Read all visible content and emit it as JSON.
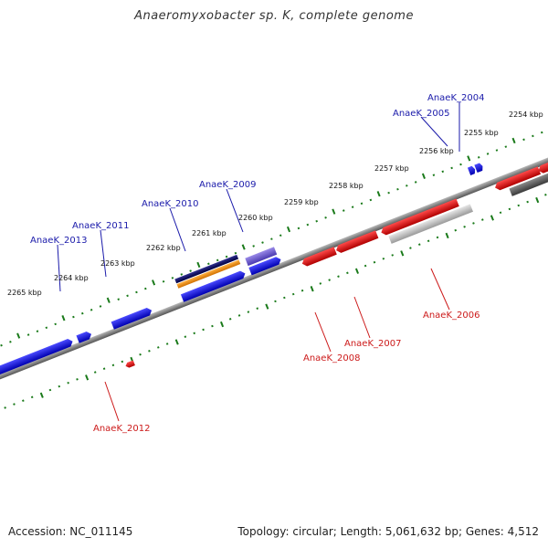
{
  "title": "Anaeromyxobacter sp. K, complete genome",
  "footer": {
    "accession": "Accession: NC_011145",
    "summary": "Topology: circular; Length: 5,061,632 bp; Genes: 4,512"
  },
  "colors": {
    "forward_gene": "#1010e0",
    "reverse_gene": "#e01010",
    "pseudo_gene": "#c0c0c0",
    "dark_gene": "#5a5a5a",
    "purple_gene": "#6a5acd",
    "navy_gene": "#101060",
    "orange_gene": "#f0901a",
    "tick": "#1a7a1a",
    "backbone": "#808080",
    "forward_label": "#1a1aaa",
    "reverse_label": "#cc1a1a"
  },
  "scale_ticks": [
    "2254 kbp",
    "2255 kbp",
    "2256 kbp",
    "2257 kbp",
    "2258 kbp",
    "2259 kbp",
    "2260 kbp",
    "2261 kbp",
    "2262 kbp",
    "2263 kbp",
    "2264 kbp",
    "2265 kbp"
  ],
  "forward_labels": [
    "AnaeK_2004",
    "AnaeK_2005",
    "AnaeK_2009",
    "AnaeK_2010",
    "AnaeK_2011",
    "AnaeK_2013"
  ],
  "reverse_labels": [
    "AnaeK_2006",
    "AnaeK_2007",
    "AnaeK_2008",
    "AnaeK_2012"
  ]
}
